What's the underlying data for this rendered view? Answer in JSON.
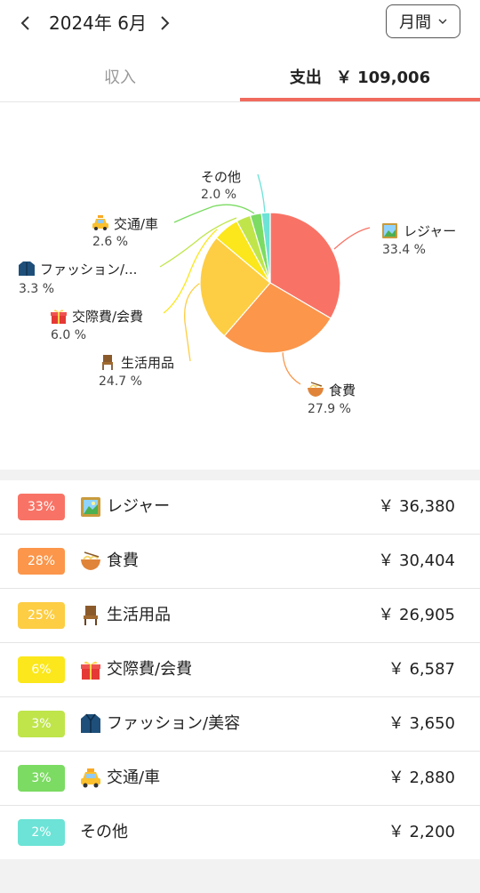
{
  "header": {
    "month": "2024年 6月",
    "period": "月間"
  },
  "tabs": {
    "income": "収入",
    "expense_label": "支出",
    "expense_amount": "￥ 109,006"
  },
  "legend_rows": [
    {
      "badge": "33%",
      "color": "#f87366",
      "icon": "painting-icon",
      "name": "レジャー",
      "amount": "￥ 36,380"
    },
    {
      "badge": "28%",
      "color": "#fb964b",
      "icon": "ramen-bowl-icon",
      "name": "食費",
      "amount": "￥ 30,404"
    },
    {
      "badge": "25%",
      "color": "#fdcd43",
      "icon": "chair-icon",
      "name": "生活用品",
      "amount": "￥ 26,905"
    },
    {
      "badge": "6%",
      "color": "#fbe71b",
      "icon": "gift-icon",
      "name": "交際費/会費",
      "amount": "￥ 6,587"
    },
    {
      "badge": "3%",
      "color": "#bfe54b",
      "icon": "coat-icon",
      "name": "ファッション/美容",
      "amount": "￥ 3,650"
    },
    {
      "badge": "3%",
      "color": "#7bdb62",
      "icon": "taxi-icon",
      "name": "交通/車",
      "amount": "￥ 2,880"
    },
    {
      "badge": "2%",
      "color": "#6ce3d6",
      "icon": "",
      "name": "その他",
      "amount": "￥ 2,200"
    }
  ],
  "chart_data": {
    "type": "pie",
    "slices": [
      {
        "label": "レジャー",
        "pct_label": "33.4 %",
        "value": 33.4,
        "color": "#f87366"
      },
      {
        "label": "食費",
        "pct_label": "27.9 %",
        "value": 27.9,
        "color": "#fb964b"
      },
      {
        "label": "生活用品",
        "pct_label": "24.7 %",
        "value": 24.7,
        "color": "#fdcd43"
      },
      {
        "label": "交際費/会費",
        "pct_label": "6.0 %",
        "value": 6.0,
        "color": "#fbe71b"
      },
      {
        "label": "ファッション/...",
        "pct_label": "3.3 %",
        "value": 3.3,
        "color": "#bfe54b"
      },
      {
        "label": "交通/車",
        "pct_label": "2.6 %",
        "value": 2.6,
        "color": "#7bdb62"
      },
      {
        "label": "その他",
        "pct_label": "2.0 %",
        "value": 2.0,
        "color": "#6ce3d6"
      }
    ]
  }
}
